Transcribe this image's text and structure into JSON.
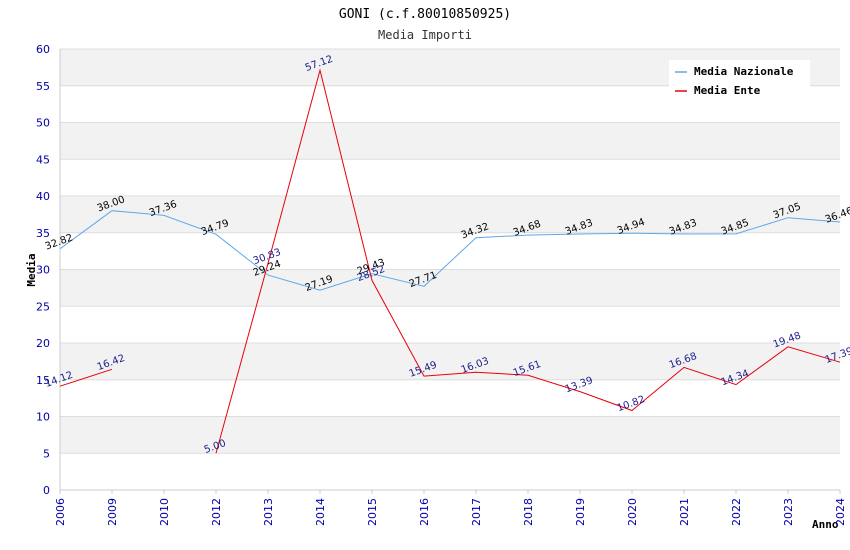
{
  "chart_data": {
    "type": "line",
    "title": "GONI (c.f.80010850925)",
    "subtitle": "Media Importi",
    "xlabel": "Anno",
    "ylabel": "Media",
    "ylim": [
      0,
      60
    ],
    "yticks": [
      "0",
      "5",
      "10",
      "15",
      "20",
      "25",
      "30",
      "35",
      "40",
      "45",
      "50",
      "55",
      "60"
    ],
    "categories": [
      "2006",
      "2009",
      "2010",
      "2012",
      "2013",
      "2014",
      "2015",
      "2016",
      "2017",
      "2018",
      "2019",
      "2020",
      "2021",
      "2022",
      "2023",
      "2024"
    ],
    "legend_position": "top-right",
    "series": [
      {
        "name": "Media Nazionale",
        "color": "#5fa8e8",
        "values": [
          32.82,
          38.0,
          37.36,
          34.79,
          29.24,
          27.19,
          29.43,
          27.71,
          34.32,
          34.68,
          34.83,
          34.94,
          34.83,
          34.85,
          37.05,
          36.46
        ],
        "labels": [
          "32.82",
          "38.00",
          "37.36",
          "34.79",
          "29.24",
          "27.19",
          "29.43",
          "27.71",
          "34.32",
          "34.68",
          "34.83",
          "34.94",
          "34.83",
          "34.85",
          "37.05",
          "36.46"
        ]
      },
      {
        "name": "Media Ente",
        "color": "#e8000b",
        "values": [
          14.12,
          16.42,
          null,
          5.0,
          30.83,
          57.12,
          28.52,
          15.49,
          16.03,
          15.61,
          13.39,
          10.82,
          16.68,
          14.34,
          19.48,
          17.39
        ],
        "labels": [
          "14.12",
          "16.42",
          null,
          "5.00",
          "30.83",
          "57.12",
          "28.52",
          "15.49",
          "16.03",
          "15.61",
          "13.39",
          "10.82",
          "16.68",
          "14.34",
          "19.48",
          "17.39"
        ]
      }
    ]
  }
}
